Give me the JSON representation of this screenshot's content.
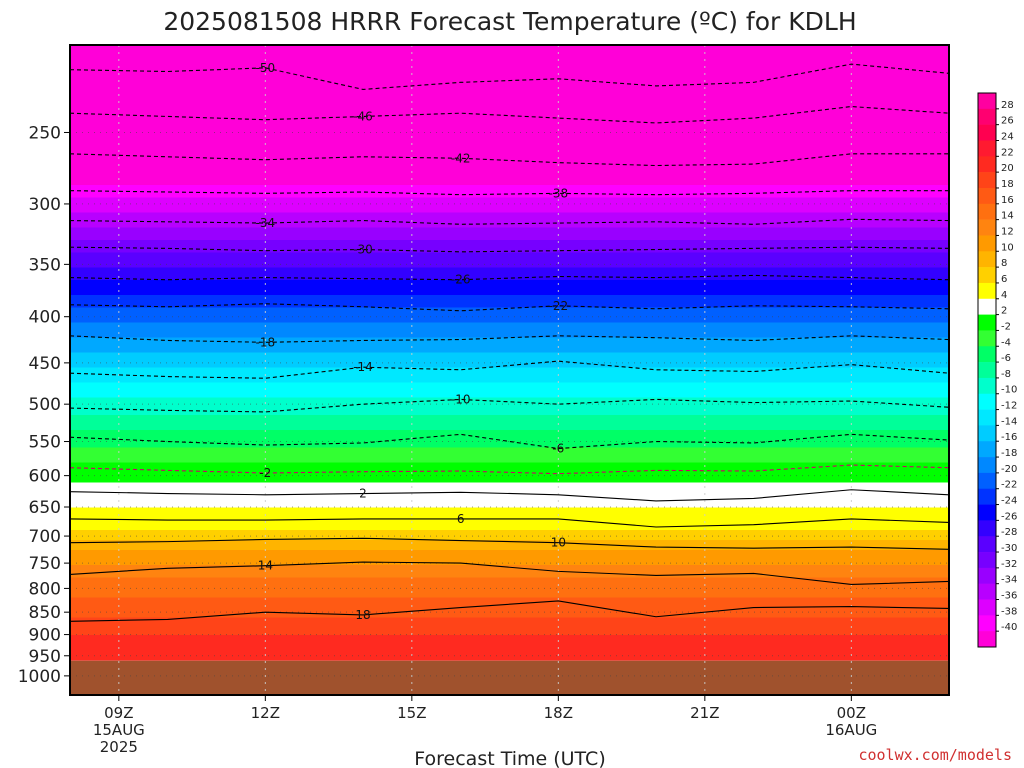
{
  "chart_data": {
    "type": "heatmap",
    "title": "2025081508 HRRR Forecast Temperature (ºC) for KDLH",
    "xlabel": "Forecast Time (UTC)",
    "ylabel": "",
    "credit": "coolwx.com/models",
    "x_range_hours": [
      8.0,
      26.0
    ],
    "y_range_hpa": [
      1050,
      200
    ],
    "y_scale": "log",
    "surface_pressure_hpa": 962,
    "x_ticks": [
      {
        "hour": 9,
        "line1": "09Z",
        "line2": "15AUG",
        "line3": "2025"
      },
      {
        "hour": 12,
        "line1": "12Z",
        "line2": "",
        "line3": ""
      },
      {
        "hour": 15,
        "line1": "15Z",
        "line2": "",
        "line3": ""
      },
      {
        "hour": 18,
        "line1": "18Z",
        "line2": "",
        "line3": ""
      },
      {
        "hour": 21,
        "line1": "21Z",
        "line2": "",
        "line3": ""
      },
      {
        "hour": 24,
        "line1": "00Z",
        "line2": "16AUG",
        "line3": ""
      }
    ],
    "y_ticks": [
      {
        "p": 250,
        "label": "250"
      },
      {
        "p": 300,
        "label": "300"
      },
      {
        "p": 350,
        "label": "350"
      },
      {
        "p": 400,
        "label": "400"
      },
      {
        "p": 450,
        "label": "450"
      },
      {
        "p": 500,
        "label": "500"
      },
      {
        "p": 550,
        "label": "550"
      },
      {
        "p": 600,
        "label": "600"
      },
      {
        "p": 650,
        "label": "650"
      },
      {
        "p": 700,
        "label": "700"
      },
      {
        "p": 750,
        "label": "750"
      },
      {
        "p": 800,
        "label": "800"
      },
      {
        "p": 850,
        "label": "850"
      },
      {
        "p": 900,
        "label": "900"
      },
      {
        "p": 950,
        "label": "950"
      },
      {
        "p": 1000,
        "label": "1000"
      }
    ],
    "colorbar_labels": [
      "28",
      "26",
      "24",
      "22",
      "20",
      "18",
      "16",
      "14",
      "12",
      "10",
      "8",
      "6",
      "4",
      "2",
      "-2",
      "-4",
      "-6",
      "-8",
      "-10",
      "-12",
      "-14",
      "-16",
      "-18",
      "-20",
      "-22",
      "-24",
      "-26",
      "-28",
      "-30",
      "-32",
      "-34",
      "-36",
      "-38",
      "-40"
    ],
    "colorbar_colors": [
      "#ff00a0",
      "#ff0070",
      "#ff0050",
      "#ff1a30",
      "#ff2a20",
      "#ff4418",
      "#ff5a14",
      "#ff7010",
      "#ff8410",
      "#ff9a00",
      "#ffb400",
      "#ffd000",
      "#ffff00",
      "#ffffff",
      "#00ff00",
      "#33ff33",
      "#00ff66",
      "#00ff99",
      "#00ffcc",
      "#00ffff",
      "#00e8ff",
      "#00ccff",
      "#00a8ff",
      "#0088ff",
      "#0060ff",
      "#0033ff",
      "#0000ff",
      "#3300ff",
      "#5a00ff",
      "#7700ff",
      "#9900ff",
      "#b800ff",
      "#dd00ff",
      "#ff00ff"
    ],
    "colorbar_top_color": "#ff00d8",
    "ground_color": "#a0522d",
    "temperature_profile_hpa_c": [
      [
        200,
        -56
      ],
      [
        228,
        -52
      ],
      [
        255,
        -46
      ],
      [
        275,
        -42
      ],
      [
        295,
        -38
      ],
      [
        318,
        -34
      ],
      [
        340,
        -30
      ],
      [
        365,
        -26
      ],
      [
        390,
        -22
      ],
      [
        422,
        -18
      ],
      [
        455,
        -14
      ],
      [
        492,
        -10
      ],
      [
        535,
        -6
      ],
      [
        580,
        -2
      ],
      [
        610,
        2
      ],
      [
        650,
        4
      ],
      [
        690,
        6
      ],
      [
        725,
        10
      ],
      [
        780,
        14
      ],
      [
        860,
        18
      ],
      [
        920,
        21
      ],
      [
        960,
        22
      ]
    ],
    "contours": [
      {
        "label": "-50",
        "x": [
          8,
          10,
          12,
          14,
          16,
          18,
          20,
          22,
          24,
          26
        ],
        "p": [
          213,
          214,
          212,
          224,
          220,
          218,
          222,
          220,
          210,
          215
        ]
      },
      {
        "label": "-46",
        "x": [
          8,
          10,
          12,
          14,
          16,
          18,
          20,
          22,
          24,
          26
        ],
        "p": [
          238,
          240,
          242,
          240,
          238,
          241,
          244,
          241,
          234,
          238
        ]
      },
      {
        "label": "-42",
        "x": [
          8,
          10,
          12,
          14,
          16,
          18,
          20,
          22,
          24,
          26
        ],
        "p": [
          264,
          266,
          268,
          266,
          267,
          270,
          272,
          271,
          264,
          264
        ]
      },
      {
        "label": "-38",
        "x": [
          8,
          10,
          12,
          14,
          16,
          18,
          20,
          22,
          24,
          26
        ],
        "p": [
          290,
          291,
          292,
          291,
          293,
          292,
          293,
          292,
          290,
          290
        ]
      },
      {
        "label": "-34",
        "x": [
          8,
          10,
          12,
          14,
          16,
          18,
          20,
          22,
          24,
          26
        ],
        "p": [
          313,
          314,
          315,
          313,
          316,
          315,
          314,
          316,
          312,
          313
        ]
      },
      {
        "label": "-30",
        "x": [
          8,
          10,
          12,
          14,
          16,
          18,
          20,
          22,
          24,
          26
        ],
        "p": [
          335,
          336,
          338,
          337,
          339,
          338,
          337,
          336,
          335,
          336
        ]
      },
      {
        "label": "-26",
        "x": [
          8,
          10,
          12,
          14,
          16,
          18,
          20,
          22,
          24,
          26
        ],
        "p": [
          362,
          364,
          362,
          363,
          364,
          361,
          362,
          360,
          362,
          364
        ]
      },
      {
        "label": "-22",
        "x": [
          8,
          10,
          12,
          14,
          16,
          18,
          20,
          22,
          24,
          26
        ],
        "p": [
          388,
          390,
          387,
          390,
          394,
          389,
          392,
          389,
          390,
          392
        ]
      },
      {
        "label": "-18",
        "x": [
          8,
          10,
          12,
          14,
          16,
          18,
          20,
          22,
          24,
          26
        ],
        "p": [
          420,
          425,
          427,
          425,
          424,
          420,
          422,
          425,
          420,
          424
        ]
      },
      {
        "label": "-14",
        "x": [
          8,
          10,
          12,
          14,
          16,
          18,
          20,
          22,
          24,
          26
        ],
        "p": [
          462,
          466,
          468,
          455,
          458,
          448,
          458,
          460,
          452,
          462
        ]
      },
      {
        "label": "-10",
        "x": [
          8,
          10,
          12,
          14,
          16,
          18,
          20,
          22,
          24,
          26
        ],
        "p": [
          505,
          508,
          510,
          500,
          494,
          500,
          494,
          498,
          496,
          504
        ]
      },
      {
        "label": "-6",
        "x": [
          8,
          10,
          12,
          14,
          16,
          18,
          20,
          22,
          24,
          26
        ],
        "p": [
          544,
          550,
          555,
          552,
          540,
          560,
          550,
          552,
          540,
          548
        ]
      },
      {
        "label": "-2",
        "x": [
          8,
          10,
          12,
          14,
          16,
          18,
          20,
          22,
          24,
          26
        ],
        "p": [
          588,
          592,
          596,
          594,
          593,
          597,
          592,
          593,
          584,
          588
        ]
      },
      {
        "label": "2",
        "x": [
          8,
          10,
          12,
          14,
          16,
          18,
          20,
          22,
          24,
          26
        ],
        "p": [
          625,
          628,
          630,
          628,
          626,
          630,
          640,
          636,
          622,
          630
        ]
      },
      {
        "label": "6",
        "x": [
          8,
          10,
          12,
          14,
          16,
          18,
          20,
          22,
          24,
          26
        ],
        "p": [
          670,
          672,
          672,
          670,
          670,
          670,
          684,
          680,
          670,
          676
        ]
      },
      {
        "label": "10",
        "x": [
          8,
          10,
          12,
          14,
          16,
          18,
          20,
          22,
          24,
          26
        ],
        "p": [
          712,
          710,
          706,
          704,
          708,
          712,
          720,
          722,
          720,
          724
        ]
      },
      {
        "label": "14",
        "x": [
          8,
          10,
          12,
          14,
          16,
          18,
          20,
          22,
          24,
          26
        ],
        "p": [
          772,
          760,
          755,
          748,
          750,
          766,
          774,
          770,
          792,
          786
        ]
      },
      {
        "label": "18",
        "x": [
          8,
          10,
          12,
          14,
          16,
          18,
          20,
          22,
          24,
          26
        ],
        "p": [
          870,
          866,
          850,
          856,
          840,
          826,
          860,
          840,
          838,
          842
        ]
      }
    ]
  }
}
